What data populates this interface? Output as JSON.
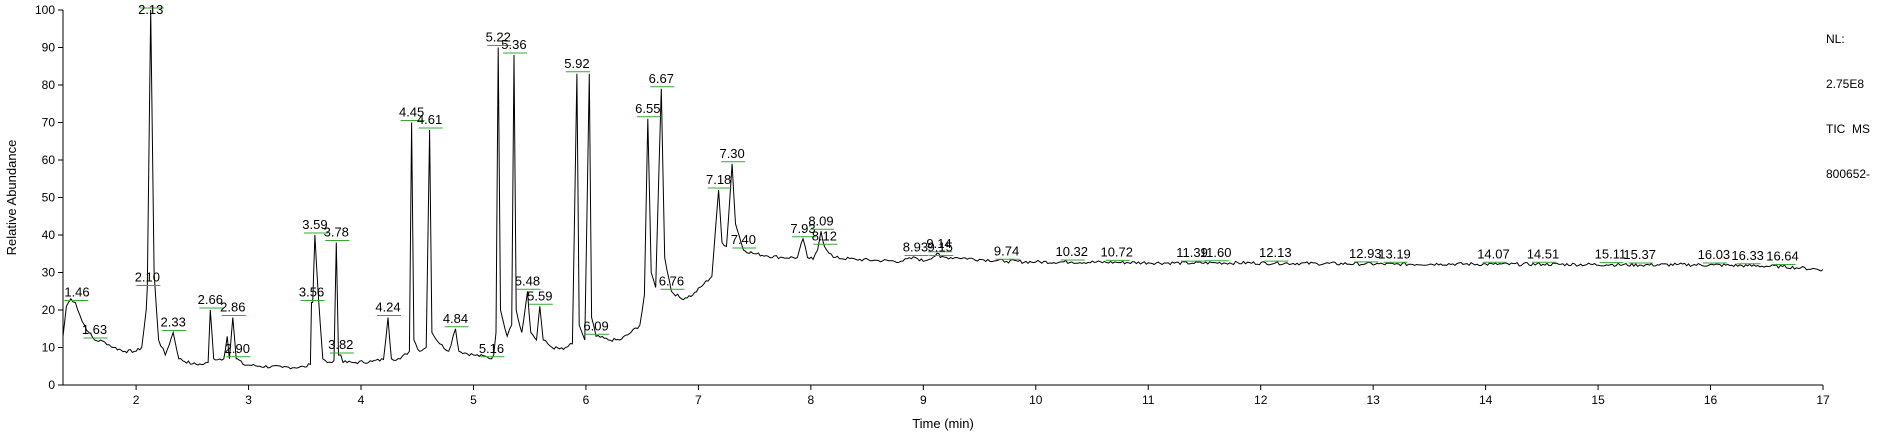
{
  "chart_data": {
    "type": "line",
    "title": "",
    "xlabel": "Time (min)",
    "ylabel": "Relative Abundance",
    "xlim": [
      1.35,
      17.0
    ],
    "ylim": [
      0,
      100
    ],
    "x_ticks": [
      2,
      3,
      4,
      5,
      6,
      7,
      8,
      9,
      10,
      11,
      12,
      13,
      14,
      15,
      16,
      17
    ],
    "y_ticks": [
      0,
      10,
      20,
      30,
      40,
      50,
      60,
      70,
      80,
      90,
      100
    ],
    "grid": false,
    "legend": "none",
    "info_lines": [
      "NL:",
      "2.75E8",
      "TIC  MS",
      "800652-"
    ],
    "colors": {
      "trace": "#000000",
      "peak_marker": "#33aa33",
      "axis": "#000000"
    },
    "baseline": [
      [
        1.35,
        13
      ],
      [
        1.38,
        21
      ],
      [
        1.42,
        23
      ],
      [
        1.46,
        22
      ],
      [
        1.52,
        17
      ],
      [
        1.58,
        14
      ],
      [
        1.63,
        12
      ],
      [
        1.72,
        11.5
      ],
      [
        1.8,
        10
      ],
      [
        1.9,
        9
      ],
      [
        2.0,
        9
      ],
      [
        2.05,
        10
      ],
      [
        2.09,
        20
      ],
      [
        2.13,
        100
      ],
      [
        2.16,
        30
      ],
      [
        2.2,
        12
      ],
      [
        2.26,
        8
      ],
      [
        2.33,
        14
      ],
      [
        2.38,
        7
      ],
      [
        2.5,
        5.6
      ],
      [
        2.6,
        5.5
      ],
      [
        2.64,
        6
      ],
      [
        2.66,
        20
      ],
      [
        2.69,
        7
      ],
      [
        2.78,
        7
      ],
      [
        2.81,
        13
      ],
      [
        2.83,
        7
      ],
      [
        2.86,
        18
      ],
      [
        2.89,
        7
      ],
      [
        2.95,
        5.5
      ],
      [
        3.1,
        5
      ],
      [
        3.3,
        4.7
      ],
      [
        3.5,
        4.8
      ],
      [
        3.55,
        5.5
      ],
      [
        3.57,
        22
      ],
      [
        3.59,
        40
      ],
      [
        3.62,
        24
      ],
      [
        3.66,
        7
      ],
      [
        3.7,
        6
      ],
      [
        3.76,
        6.5
      ],
      [
        3.78,
        38
      ],
      [
        3.8,
        8
      ],
      [
        3.84,
        6
      ],
      [
        3.95,
        6
      ],
      [
        4.1,
        6.3
      ],
      [
        4.2,
        6.8
      ],
      [
        4.24,
        18
      ],
      [
        4.27,
        7
      ],
      [
        4.35,
        7
      ],
      [
        4.43,
        9
      ],
      [
        4.45,
        70
      ],
      [
        4.47,
        12
      ],
      [
        4.52,
        9
      ],
      [
        4.58,
        10
      ],
      [
        4.61,
        68
      ],
      [
        4.63,
        14
      ],
      [
        4.7,
        11
      ],
      [
        4.78,
        9
      ],
      [
        4.84,
        15
      ],
      [
        4.87,
        9
      ],
      [
        5.0,
        8
      ],
      [
        5.12,
        7.5
      ],
      [
        5.18,
        8
      ],
      [
        5.2,
        14
      ],
      [
        5.22,
        90
      ],
      [
        5.24,
        20
      ],
      [
        5.3,
        13
      ],
      [
        5.34,
        16
      ],
      [
        5.36,
        88
      ],
      [
        5.38,
        20
      ],
      [
        5.43,
        14
      ],
      [
        5.48,
        25
      ],
      [
        5.51,
        14
      ],
      [
        5.56,
        12
      ],
      [
        5.59,
        21
      ],
      [
        5.62,
        12
      ],
      [
        5.7,
        10
      ],
      [
        5.8,
        9.5
      ],
      [
        5.88,
        11
      ],
      [
        5.92,
        83
      ],
      [
        5.94,
        16
      ],
      [
        5.99,
        12
      ],
      [
        6.03,
        83
      ],
      [
        6.05,
        18
      ],
      [
        6.09,
        13
      ],
      [
        6.2,
        12
      ],
      [
        6.3,
        12
      ],
      [
        6.4,
        14
      ],
      [
        6.48,
        16
      ],
      [
        6.52,
        24
      ],
      [
        6.55,
        71
      ],
      [
        6.58,
        30
      ],
      [
        6.62,
        26
      ],
      [
        6.67,
        79
      ],
      [
        6.7,
        34
      ],
      [
        6.76,
        25
      ],
      [
        6.85,
        23
      ],
      [
        6.95,
        24
      ],
      [
        7.05,
        27
      ],
      [
        7.12,
        29
      ],
      [
        7.18,
        52
      ],
      [
        7.21,
        38
      ],
      [
        7.25,
        37
      ],
      [
        7.3,
        59
      ],
      [
        7.33,
        43
      ],
      [
        7.38,
        38
      ],
      [
        7.4,
        36
      ],
      [
        7.5,
        35
      ],
      [
        7.6,
        34.5
      ],
      [
        7.75,
        34
      ],
      [
        7.88,
        34
      ],
      [
        7.93,
        39
      ],
      [
        7.97,
        34
      ],
      [
        8.02,
        33.5
      ],
      [
        8.06,
        36
      ],
      [
        8.09,
        41
      ],
      [
        8.12,
        37
      ],
      [
        8.2,
        34
      ],
      [
        8.4,
        33.5
      ],
      [
        8.6,
        33.2
      ],
      [
        8.8,
        33
      ],
      [
        8.93,
        34
      ],
      [
        9.0,
        33
      ],
      [
        9.14,
        35
      ],
      [
        9.3,
        34
      ],
      [
        9.5,
        33.5
      ],
      [
        9.74,
        33
      ],
      [
        10.0,
        32.8
      ],
      [
        10.32,
        32.8
      ],
      [
        10.72,
        32.7
      ],
      [
        11.0,
        32.6
      ],
      [
        11.39,
        32.5
      ],
      [
        11.6,
        32.6
      ],
      [
        12.13,
        32.5
      ],
      [
        12.5,
        32.4
      ],
      [
        12.93,
        32.3
      ],
      [
        13.19,
        32.2
      ],
      [
        13.6,
        32.3
      ],
      [
        14.07,
        32.2
      ],
      [
        14.51,
        32.2
      ],
      [
        15.11,
        32.1
      ],
      [
        15.37,
        32
      ],
      [
        15.7,
        32.1
      ],
      [
        16.03,
        32
      ],
      [
        16.33,
        31.8
      ],
      [
        16.64,
        31.6
      ],
      [
        16.8,
        31.2
      ],
      [
        17.0,
        30.8
      ]
    ],
    "peaks": [
      {
        "label": "1.46",
        "x": 1.46,
        "y": 22
      },
      {
        "label": "1.63",
        "x": 1.63,
        "y": 12
      },
      {
        "label": "2.10",
        "x": 2.1,
        "y": 26
      },
      {
        "label": "2.13",
        "x": 2.13,
        "y": 100
      },
      {
        "label": "2.33",
        "x": 2.33,
        "y": 14
      },
      {
        "label": "2.66",
        "x": 2.66,
        "y": 20
      },
      {
        "label": "2.86",
        "x": 2.86,
        "y": 18
      },
      {
        "label": "2.90",
        "x": 2.9,
        "y": 7
      },
      {
        "label": "3.56",
        "x": 3.56,
        "y": 22
      },
      {
        "label": "3.59",
        "x": 3.59,
        "y": 40
      },
      {
        "label": "3.78",
        "x": 3.78,
        "y": 38
      },
      {
        "label": "3.82",
        "x": 3.82,
        "y": 8
      },
      {
        "label": "4.24",
        "x": 4.24,
        "y": 18
      },
      {
        "label": "4.45",
        "x": 4.45,
        "y": 70
      },
      {
        "label": "4.61",
        "x": 4.61,
        "y": 68
      },
      {
        "label": "4.84",
        "x": 4.84,
        "y": 15
      },
      {
        "label": "5.16",
        "x": 5.16,
        "y": 7
      },
      {
        "label": "5.22",
        "x": 5.22,
        "y": 90
      },
      {
        "label": "5.36",
        "x": 5.36,
        "y": 88
      },
      {
        "label": "5.48",
        "x": 5.48,
        "y": 25
      },
      {
        "label": "5.59",
        "x": 5.59,
        "y": 21
      },
      {
        "label": "5.92",
        "x": 5.92,
        "y": 83
      },
      {
        "label": "6.09",
        "x": 6.09,
        "y": 13
      },
      {
        "label": "6.55",
        "x": 6.55,
        "y": 71
      },
      {
        "label": "6.67",
        "x": 6.67,
        "y": 79
      },
      {
        "label": "6.76",
        "x": 6.76,
        "y": 25
      },
      {
        "label": "7.18",
        "x": 7.18,
        "y": 52
      },
      {
        "label": "7.30",
        "x": 7.3,
        "y": 59
      },
      {
        "label": "7.40",
        "x": 7.4,
        "y": 36
      },
      {
        "label": "7.93",
        "x": 7.93,
        "y": 39
      },
      {
        "label": "8.09",
        "x": 8.09,
        "y": 41
      },
      {
        "label": "8.12",
        "x": 8.12,
        "y": 37
      },
      {
        "label": "8.93",
        "x": 8.93,
        "y": 34
      },
      {
        "label": "9.14",
        "x": 9.14,
        "y": 35
      },
      {
        "label": "9.15",
        "x": 9.15,
        "y": 34
      },
      {
        "label": "9.74",
        "x": 9.74,
        "y": 33
      },
      {
        "label": "10.32",
        "x": 10.32,
        "y": 32.8
      },
      {
        "label": "10.72",
        "x": 10.72,
        "y": 32.7
      },
      {
        "label": "11.39",
        "x": 11.39,
        "y": 32.5
      },
      {
        "label": "11.60",
        "x": 11.6,
        "y": 32.6
      },
      {
        "label": "12.13",
        "x": 12.13,
        "y": 32.5
      },
      {
        "label": "12.93",
        "x": 12.93,
        "y": 32.3
      },
      {
        "label": "13.19",
        "x": 13.19,
        "y": 32.2
      },
      {
        "label": "14.07",
        "x": 14.07,
        "y": 32.2
      },
      {
        "label": "14.51",
        "x": 14.51,
        "y": 32.2
      },
      {
        "label": "15.11",
        "x": 15.11,
        "y": 32.1
      },
      {
        "label": "15.37",
        "x": 15.37,
        "y": 32
      },
      {
        "label": "16.03",
        "x": 16.03,
        "y": 32
      },
      {
        "label": "16.33",
        "x": 16.33,
        "y": 31.8
      },
      {
        "label": "16.64",
        "x": 16.64,
        "y": 31.6
      }
    ]
  }
}
